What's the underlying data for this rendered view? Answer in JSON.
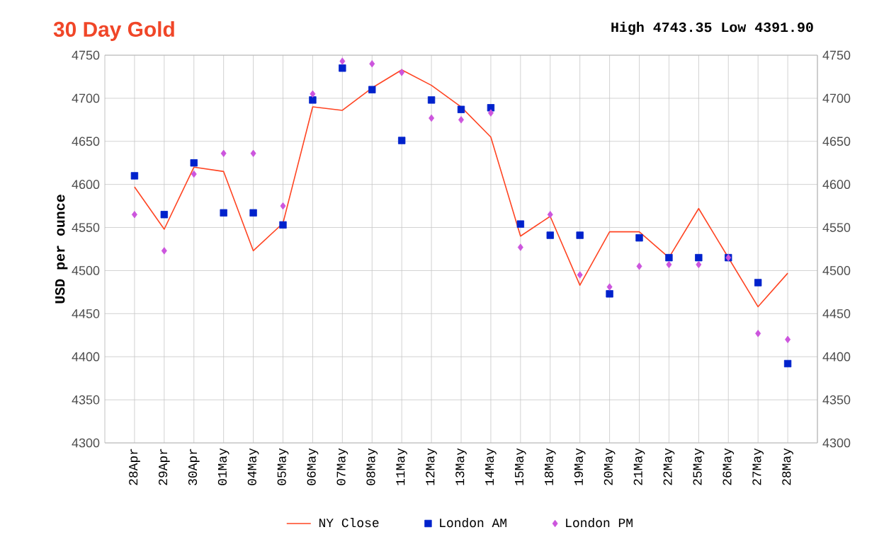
{
  "chart_data": {
    "type": "line",
    "title": "30 Day Gold",
    "ylabel": "USD per ounce",
    "annotations": [
      "High 4743.35 Low 4391.90"
    ],
    "categories": [
      "28Apr",
      "29Apr",
      "30Apr",
      "01May",
      "04May",
      "05May",
      "06May",
      "07May",
      "08May",
      "11May",
      "12May",
      "13May",
      "14May",
      "15May",
      "18May",
      "19May",
      "20May",
      "21May",
      "22May",
      "25May",
      "26May",
      "27May",
      "28May"
    ],
    "series": [
      {
        "name": "NY Close",
        "color": "#ff4422",
        "marker": "none",
        "values": [
          4597,
          4548,
          4620,
          4615,
          4523,
          4555,
          4690,
          4686,
          4712,
          4733,
          4715,
          4690,
          4655,
          4540,
          4563,
          4483,
          4545,
          4545,
          4515,
          4572,
          4515,
          4458,
          4497
        ]
      },
      {
        "name": "London AM",
        "type": "scatter",
        "color": "#0022cc",
        "marker": "square",
        "values": [
          4610,
          4565,
          4625,
          4567,
          4567,
          4553,
          4698,
          4735,
          4710,
          4651,
          4698,
          4687,
          4689,
          4554,
          4541,
          4541,
          4473,
          4538,
          4515,
          4515,
          4515,
          4486,
          4392
        ]
      },
      {
        "name": "London PM",
        "type": "scatter",
        "color": "#cc55dd",
        "marker": "diamond",
        "values": [
          4565,
          4523,
          4612,
          4636,
          4636,
          4575,
          4705,
          4743,
          4740,
          4730,
          4677,
          4675,
          4683,
          4527,
          4565,
          4495,
          4481,
          4505,
          4507,
          4507,
          4515,
          4427,
          4420
        ]
      }
    ],
    "ylim": [
      4300,
      4750
    ],
    "yticks": [
      4300,
      4350,
      4400,
      4450,
      4500,
      4550,
      4600,
      4650,
      4700,
      4750
    ],
    "y2lim": [
      4300,
      4750
    ],
    "y2ticks": [
      4300,
      4350,
      4400,
      4450,
      4500,
      4550,
      4600,
      4650,
      4700,
      4750
    ],
    "grid": true,
    "legend": "bottom"
  }
}
